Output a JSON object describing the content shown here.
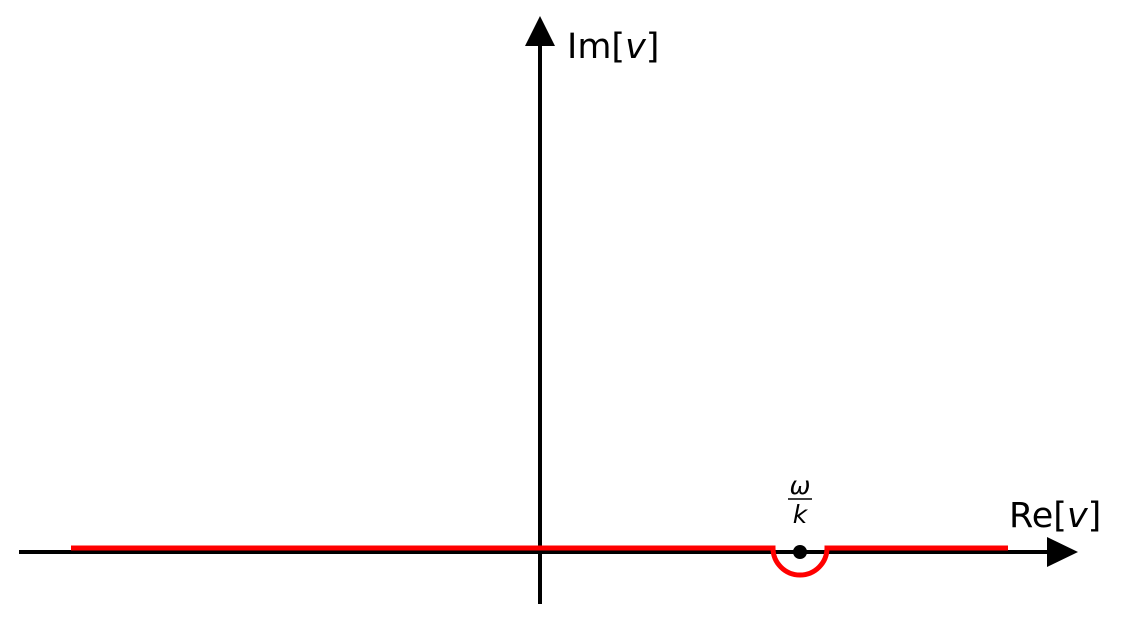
{
  "diagram": {
    "y_axis": {
      "prefix": "Im[",
      "variable": "v",
      "suffix": "]"
    },
    "x_axis": {
      "prefix": "Re[",
      "variable": "v",
      "suffix": "]"
    },
    "pole": {
      "numerator": "ω",
      "denominator": "k"
    },
    "colors": {
      "axes": "#000000",
      "contour": "#ff0000",
      "pole": "#000000"
    }
  }
}
